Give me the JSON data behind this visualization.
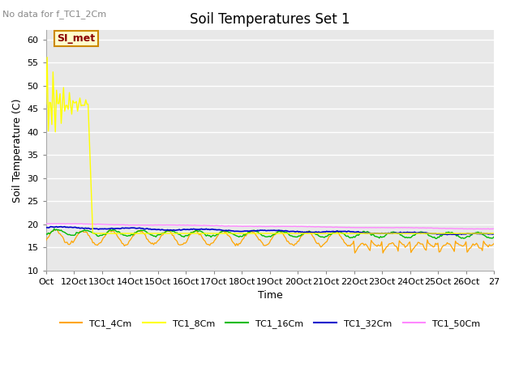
{
  "title": "Soil Temperatures Set 1",
  "xlabel": "Time",
  "ylabel": "Soil Temperature (C)",
  "top_left_text": "No data for f_TC1_2Cm",
  "annotation_box_text": "SI_met",
  "ylim": [
    10,
    62
  ],
  "yticks": [
    10,
    15,
    20,
    25,
    30,
    35,
    40,
    45,
    50,
    55,
    60
  ],
  "background_color": "#e8e8e8",
  "plot_bg_color": "#e8e8e8",
  "grid_color": "#ffffff",
  "colors": {
    "TC1_4Cm": "#ffa500",
    "TC1_8Cm": "#ffff00",
    "TC1_16Cm": "#00bb00",
    "TC1_32Cm": "#0000cc",
    "TC1_50Cm": "#ff88ff"
  },
  "legend_labels": [
    "TC1_4Cm",
    "TC1_8Cm",
    "TC1_16Cm",
    "TC1_32Cm",
    "TC1_50Cm"
  ]
}
